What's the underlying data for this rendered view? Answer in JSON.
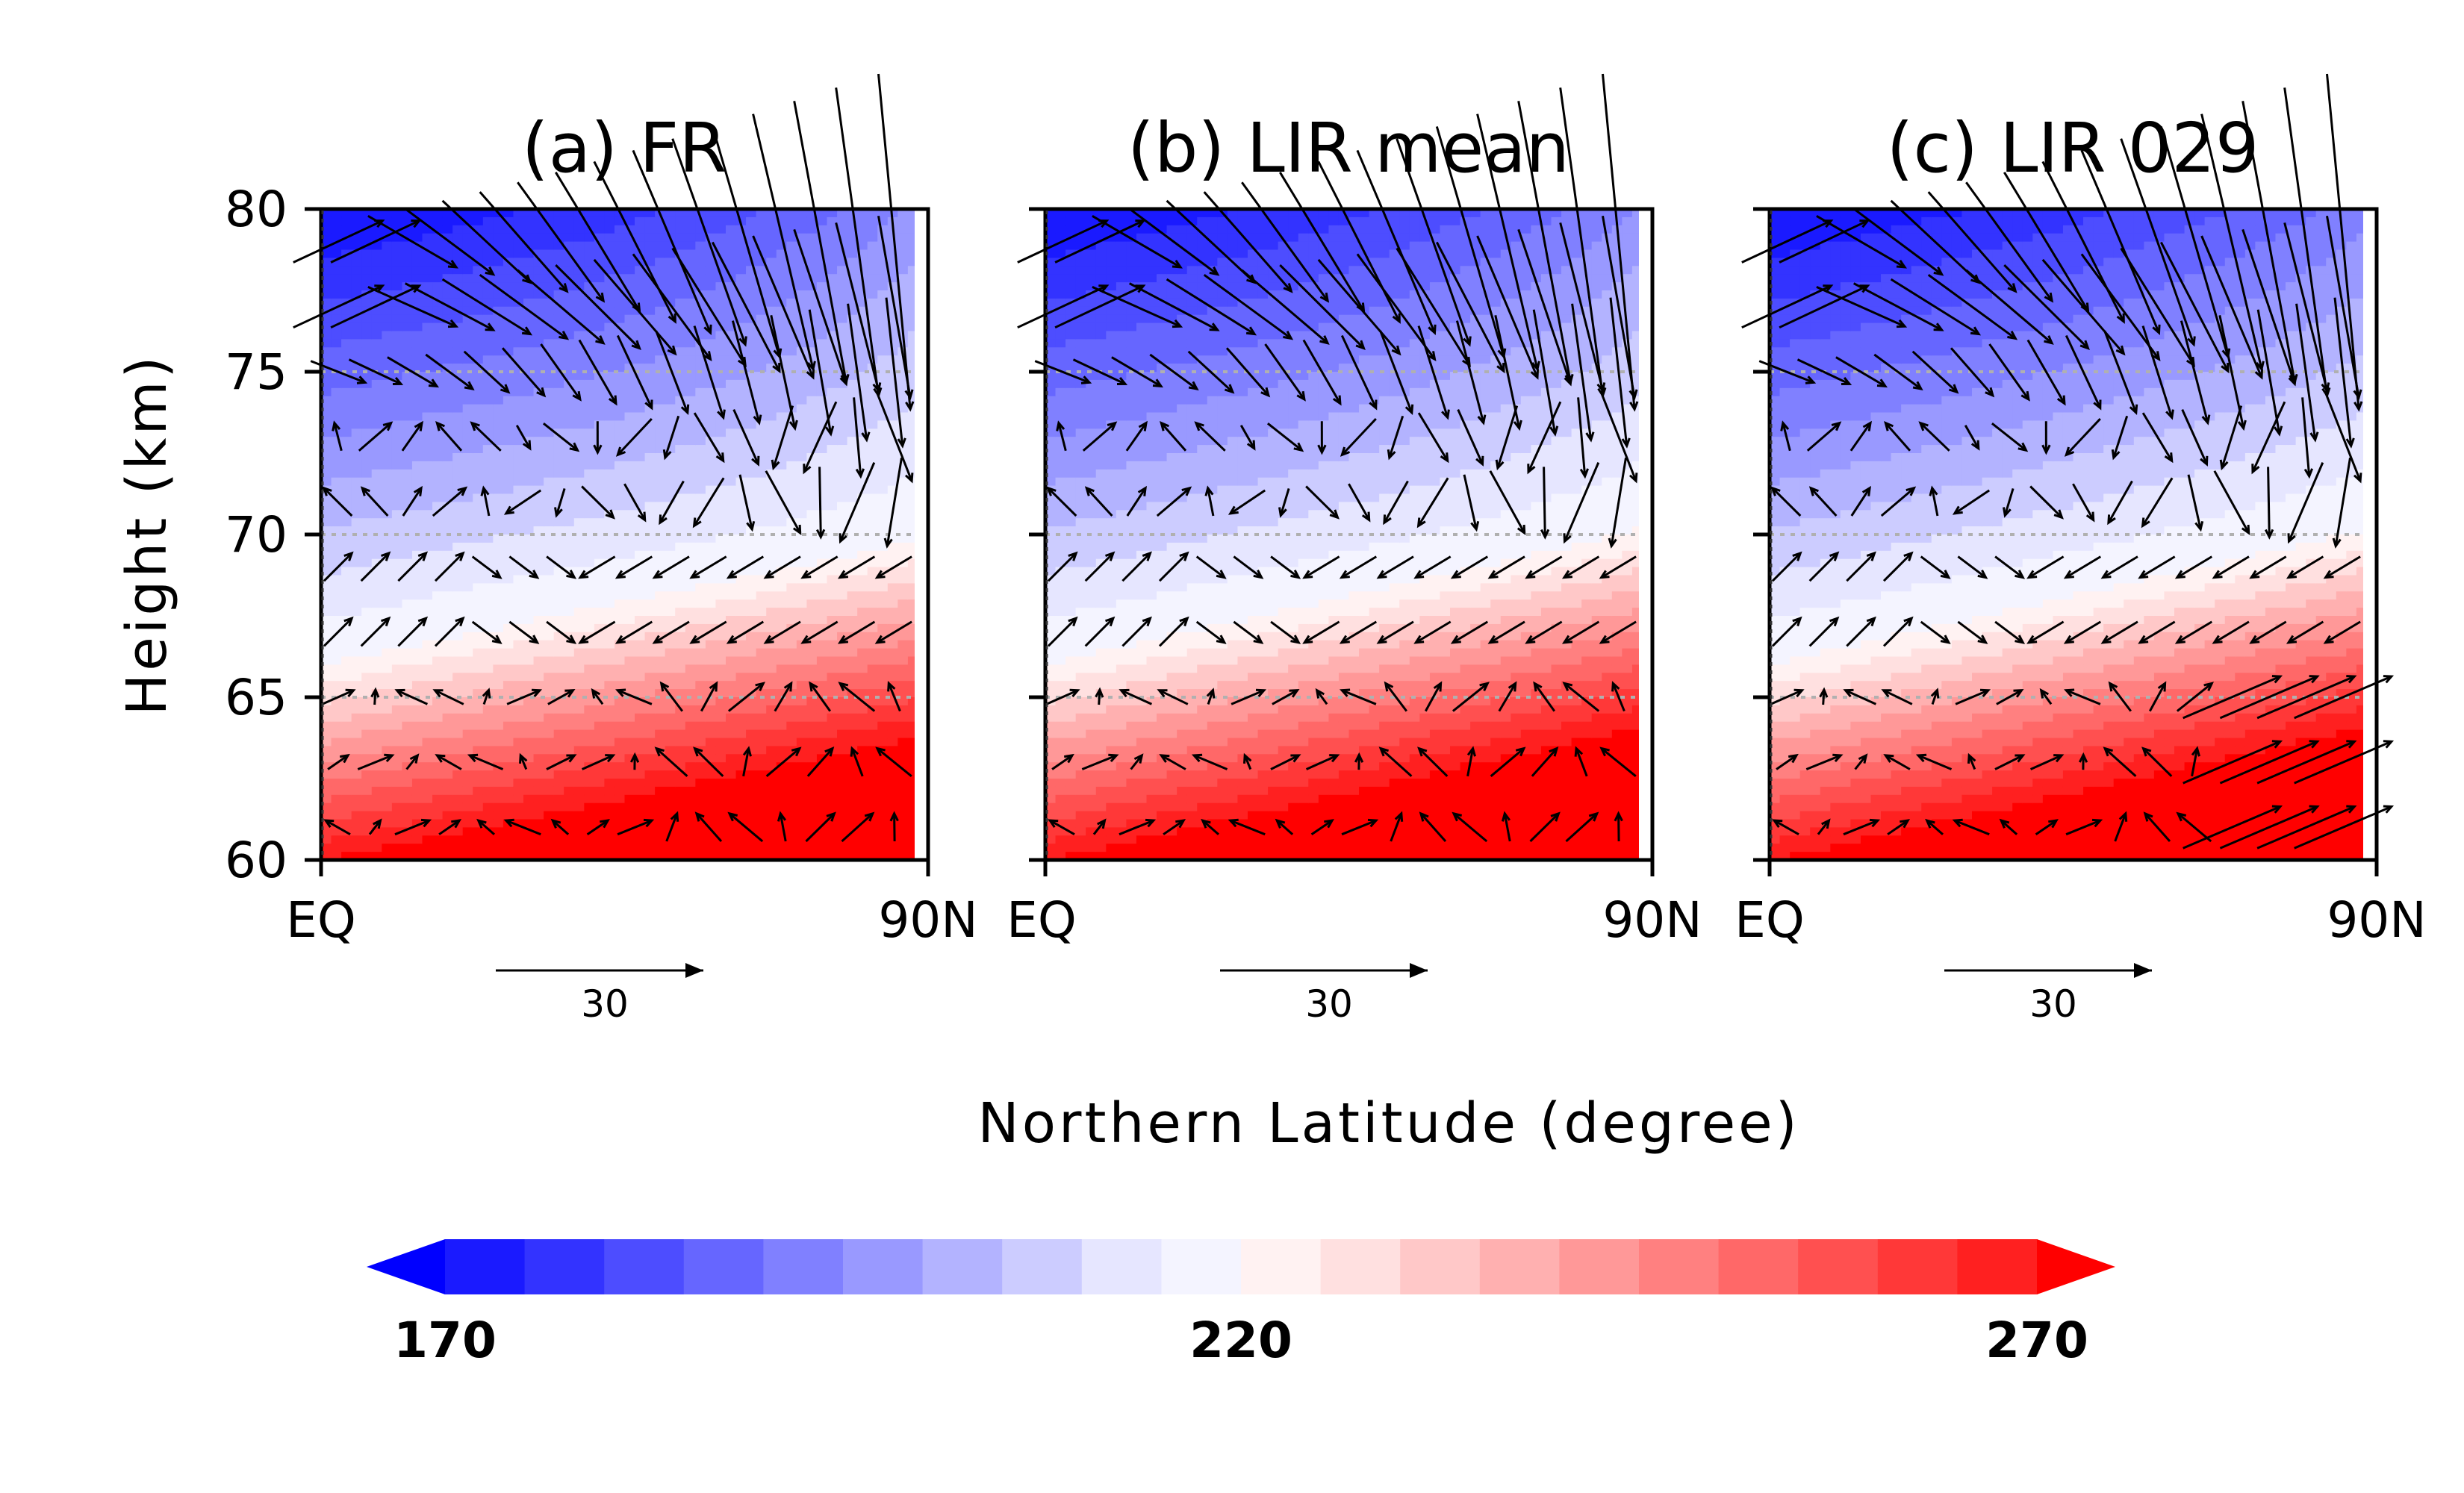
{
  "chart_data": [
    {
      "type": "heatmap",
      "title": "(a) FR",
      "xlabel": "Northern Latitude (degree)",
      "ylabel": "Height (km)",
      "x_ticks": [
        "EQ",
        "90N"
      ],
      "xlim": [
        0,
        90
      ],
      "y_ticks": [
        "60",
        "65",
        "70",
        "75",
        "80"
      ],
      "ylim": [
        60,
        80
      ],
      "grid_lines_y": [
        65,
        70,
        75
      ],
      "vector_reference": {
        "magnitude": 30,
        "label": "30"
      },
      "flow": "Near-zonal wind at low levels; strong poleward/downward flow above 75 km converging at the pole",
      "colorbar": {
        "min": 170,
        "max": 270,
        "mid": 220,
        "labels": [
          "170",
          "220",
          "270"
        ]
      }
    },
    {
      "type": "heatmap",
      "title": "(b) LIR mean",
      "xlabel": "Northern Latitude (degree)",
      "ylabel": "Height (km)",
      "x_ticks": [
        "EQ",
        "90N"
      ],
      "xlim": [
        0,
        90
      ],
      "y_ticks": [
        "60",
        "65",
        "70",
        "75",
        "80"
      ],
      "ylim": [
        60,
        80
      ],
      "grid_lines_y": [
        65,
        70,
        75
      ],
      "vector_reference": {
        "magnitude": 30,
        "label": "30"
      },
      "colorbar": {
        "min": 170,
        "max": 270,
        "mid": 220,
        "labels": [
          "170",
          "220",
          "270"
        ]
      }
    },
    {
      "type": "heatmap",
      "title": "(c) LIR 029",
      "xlabel": "Northern Latitude (degree)",
      "ylabel": "Height (km)",
      "x_ticks": [
        "EQ",
        "90N"
      ],
      "xlim": [
        0,
        90
      ],
      "y_ticks": [
        "60",
        "65",
        "70",
        "75",
        "80"
      ],
      "ylim": [
        60,
        80
      ],
      "grid_lines_y": [
        65,
        70,
        75
      ],
      "vector_reference": {
        "magnitude": 30,
        "label": "30"
      },
      "colorbar": {
        "min": 170,
        "max": 270,
        "mid": 220,
        "labels": [
          "170",
          "220",
          "270"
        ]
      }
    }
  ],
  "figure": {
    "xlabel": "Northern Latitude (degree)",
    "ylabel": "Height (km)",
    "colorbar": {
      "min": 170,
      "max": 270,
      "step": 5,
      "extend": "both",
      "labels": [
        "170",
        "220",
        "270"
      ],
      "colors": [
        "#0000ff",
        "#1a1aff",
        "#3333ff",
        "#4d4dff",
        "#6666ff",
        "#8080ff",
        "#9999ff",
        "#b3b3ff",
        "#ccccff",
        "#e6e6ff",
        "#f4f4ff",
        "#fff2f2",
        "#ffe0e0",
        "#ffc8c8",
        "#ffb0b0",
        "#ff9898",
        "#ff8080",
        "#ff6868",
        "#ff5050",
        "#ff3838",
        "#ff2020",
        "#ff0000"
      ]
    }
  }
}
